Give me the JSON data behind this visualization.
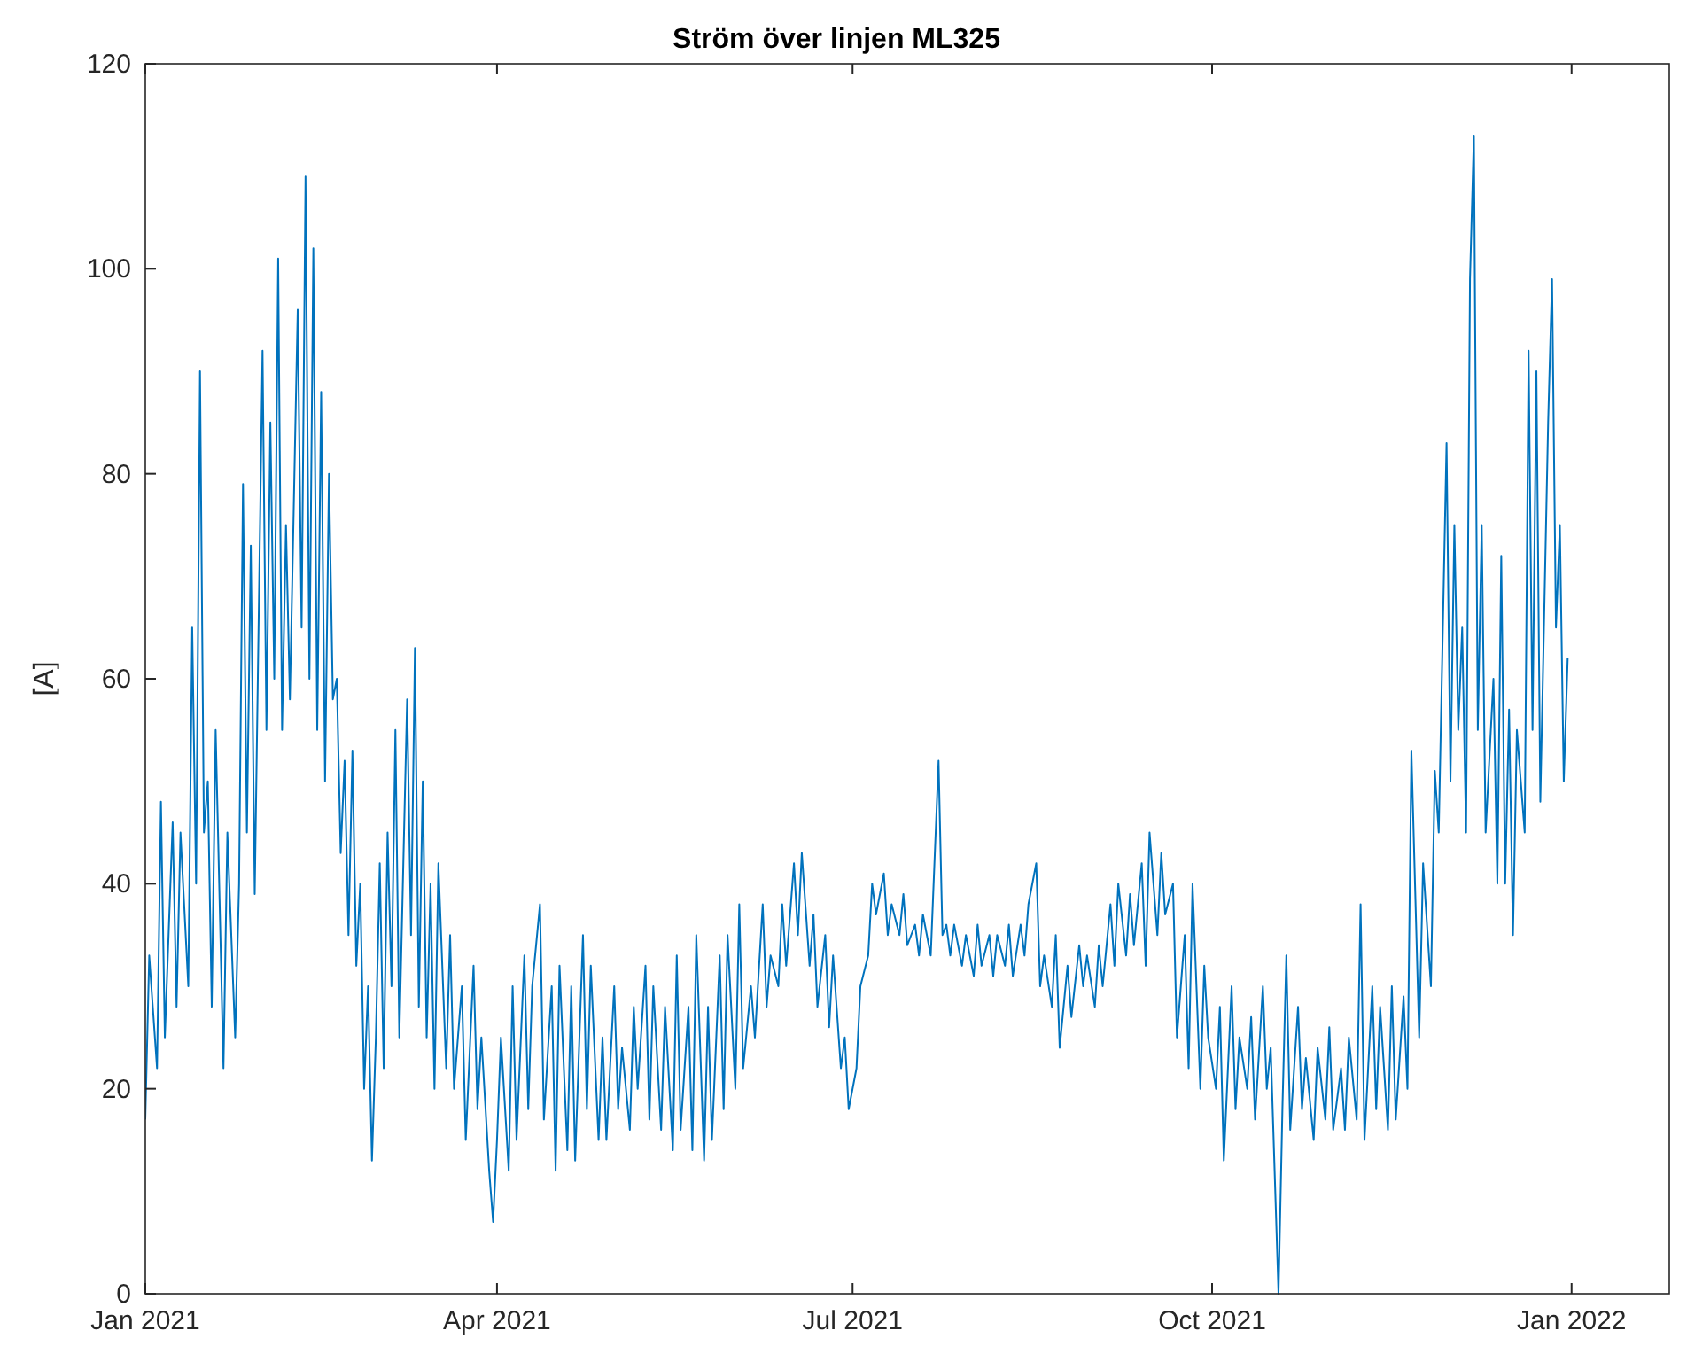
{
  "chart_data": {
    "type": "line",
    "title": "Ström över linjen ML325",
    "ylabel": "[A]",
    "xlim": [
      "2021-01-01",
      "2022-01-26"
    ],
    "xticks": [
      {
        "value": "2021-01-01",
        "label": "Jan 2021"
      },
      {
        "value": "2021-04-01",
        "label": "Apr 2021"
      },
      {
        "value": "2021-07-01",
        "label": "Jul 2021"
      },
      {
        "value": "2021-10-01",
        "label": "Oct 2021"
      },
      {
        "value": "2022-01-01",
        "label": "Jan 2022"
      }
    ],
    "ylim": [
      0,
      120
    ],
    "yticks": [
      0,
      20,
      40,
      60,
      80,
      100,
      120
    ],
    "grid": false,
    "marker": "none",
    "line_style": "solid",
    "series": [
      {
        "color": "#0072bd",
        "x": [
          "2021-01-01",
          "2021-01-02",
          "2021-01-04",
          "2021-01-05",
          "2021-01-06",
          "2021-01-08",
          "2021-01-09",
          "2021-01-10",
          "2021-01-12",
          "2021-01-13",
          "2021-01-14",
          "2021-01-15",
          "2021-01-16",
          "2021-01-17",
          "2021-01-18",
          "2021-01-19",
          "2021-01-21",
          "2021-01-22",
          "2021-01-24",
          "2021-01-25",
          "2021-01-26",
          "2021-01-27",
          "2021-01-28",
          "2021-01-29",
          "2021-01-31",
          "2021-02-01",
          "2021-02-02",
          "2021-02-03",
          "2021-02-04",
          "2021-02-05",
          "2021-02-06",
          "2021-02-07",
          "2021-02-09",
          "2021-02-10",
          "2021-02-11",
          "2021-02-12",
          "2021-02-13",
          "2021-02-14",
          "2021-02-15",
          "2021-02-16",
          "2021-02-17",
          "2021-02-18",
          "2021-02-19",
          "2021-02-20",
          "2021-02-21",
          "2021-02-22",
          "2021-02-23",
          "2021-02-24",
          "2021-02-25",
          "2021-02-26",
          "2021-02-27",
          "2021-02-28",
          "2021-03-01",
          "2021-03-02",
          "2021-03-03",
          "2021-03-04",
          "2021-03-05",
          "2021-03-06",
          "2021-03-07",
          "2021-03-09",
          "2021-03-10",
          "2021-03-11",
          "2021-03-12",
          "2021-03-13",
          "2021-03-14",
          "2021-03-15",
          "2021-03-16",
          "2021-03-17",
          "2021-03-19",
          "2021-03-20",
          "2021-03-21",
          "2021-03-23",
          "2021-03-24",
          "2021-03-26",
          "2021-03-27",
          "2021-03-28",
          "2021-03-30",
          "2021-03-31",
          "2021-04-01",
          "2021-04-02",
          "2021-04-04",
          "2021-04-05",
          "2021-04-06",
          "2021-04-08",
          "2021-04-09",
          "2021-04-10",
          "2021-04-12",
          "2021-04-13",
          "2021-04-15",
          "2021-04-16",
          "2021-04-17",
          "2021-04-19",
          "2021-04-20",
          "2021-04-21",
          "2021-04-23",
          "2021-04-24",
          "2021-04-25",
          "2021-04-27",
          "2021-04-28",
          "2021-04-29",
          "2021-05-01",
          "2021-05-02",
          "2021-05-03",
          "2021-05-05",
          "2021-05-06",
          "2021-05-07",
          "2021-05-09",
          "2021-05-10",
          "2021-05-11",
          "2021-05-13",
          "2021-05-14",
          "2021-05-16",
          "2021-05-17",
          "2021-05-18",
          "2021-05-20",
          "2021-05-21",
          "2021-05-22",
          "2021-05-24",
          "2021-05-25",
          "2021-05-26",
          "2021-05-28",
          "2021-05-29",
          "2021-05-30",
          "2021-06-01",
          "2021-06-02",
          "2021-06-03",
          "2021-06-05",
          "2021-06-06",
          "2021-06-08",
          "2021-06-09",
          "2021-06-10",
          "2021-06-12",
          "2021-06-13",
          "2021-06-14",
          "2021-06-16",
          "2021-06-17",
          "2021-06-18",
          "2021-06-20",
          "2021-06-21",
          "2021-06-22",
          "2021-06-24",
          "2021-06-25",
          "2021-06-26",
          "2021-06-28",
          "2021-06-29",
          "2021-06-30",
          "2021-07-02",
          "2021-07-03",
          "2021-07-05",
          "2021-07-06",
          "2021-07-07",
          "2021-07-09",
          "2021-07-10",
          "2021-07-11",
          "2021-07-13",
          "2021-07-14",
          "2021-07-15",
          "2021-07-17",
          "2021-07-18",
          "2021-07-19",
          "2021-07-21",
          "2021-07-23",
          "2021-07-24",
          "2021-07-25",
          "2021-07-26",
          "2021-07-27",
          "2021-07-29",
          "2021-07-30",
          "2021-08-01",
          "2021-08-02",
          "2021-08-03",
          "2021-08-05",
          "2021-08-06",
          "2021-08-07",
          "2021-08-09",
          "2021-08-10",
          "2021-08-11",
          "2021-08-13",
          "2021-08-14",
          "2021-08-15",
          "2021-08-17",
          "2021-08-18",
          "2021-08-19",
          "2021-08-21",
          "2021-08-22",
          "2021-08-23",
          "2021-08-25",
          "2021-08-26",
          "2021-08-28",
          "2021-08-29",
          "2021-08-30",
          "2021-09-01",
          "2021-09-02",
          "2021-09-03",
          "2021-09-05",
          "2021-09-06",
          "2021-09-07",
          "2021-09-09",
          "2021-09-10",
          "2021-09-11",
          "2021-09-13",
          "2021-09-14",
          "2021-09-15",
          "2021-09-17",
          "2021-09-18",
          "2021-09-19",
          "2021-09-21",
          "2021-09-22",
          "2021-09-24",
          "2021-09-25",
          "2021-09-26",
          "2021-09-28",
          "2021-09-29",
          "2021-09-30",
          "2021-10-02",
          "2021-10-03",
          "2021-10-04",
          "2021-10-06",
          "2021-10-07",
          "2021-10-08",
          "2021-10-10",
          "2021-10-11",
          "2021-10-12",
          "2021-10-14",
          "2021-10-15",
          "2021-10-16",
          "2021-10-18",
          "2021-10-19",
          "2021-10-20",
          "2021-10-21",
          "2021-10-23",
          "2021-10-24",
          "2021-10-25",
          "2021-10-27",
          "2021-10-28",
          "2021-10-30",
          "2021-10-31",
          "2021-11-01",
          "2021-11-03",
          "2021-11-04",
          "2021-11-05",
          "2021-11-07",
          "2021-11-08",
          "2021-11-09",
          "2021-11-11",
          "2021-11-12",
          "2021-11-13",
          "2021-11-15",
          "2021-11-16",
          "2021-11-17",
          "2021-11-19",
          "2021-11-20",
          "2021-11-21",
          "2021-11-23",
          "2021-11-24",
          "2021-11-26",
          "2021-11-27",
          "2021-11-28",
          "2021-11-30",
          "2021-12-01",
          "2021-12-02",
          "2021-12-03",
          "2021-12-04",
          "2021-12-05",
          "2021-12-06",
          "2021-12-07",
          "2021-12-08",
          "2021-12-09",
          "2021-12-10",
          "2021-12-12",
          "2021-12-13",
          "2021-12-14",
          "2021-12-15",
          "2021-12-16",
          "2021-12-17",
          "2021-12-18",
          "2021-12-20",
          "2021-12-21",
          "2021-12-22",
          "2021-12-23",
          "2021-12-24",
          "2021-12-26",
          "2021-12-27",
          "2021-12-28",
          "2021-12-29",
          "2021-12-30",
          "2021-12-31"
        ],
        "values": [
          17,
          33,
          22,
          48,
          25,
          46,
          28,
          45,
          30,
          65,
          40,
          90,
          45,
          50,
          28,
          55,
          22,
          45,
          25,
          40,
          79,
          45,
          73,
          39,
          92,
          55,
          85,
          60,
          101,
          55,
          75,
          58,
          96,
          65,
          109,
          60,
          102,
          55,
          88,
          50,
          80,
          58,
          60,
          43,
          52,
          35,
          53,
          32,
          40,
          20,
          30,
          13,
          25,
          42,
          22,
          45,
          30,
          55,
          25,
          58,
          35,
          63,
          28,
          50,
          25,
          40,
          20,
          42,
          22,
          35,
          20,
          30,
          15,
          32,
          18,
          25,
          12,
          7,
          15,
          25,
          12,
          30,
          15,
          33,
          18,
          30,
          38,
          17,
          30,
          12,
          32,
          14,
          30,
          13,
          35,
          18,
          32,
          15,
          25,
          15,
          30,
          18,
          24,
          16,
          28,
          20,
          32,
          17,
          30,
          16,
          28,
          14,
          33,
          16,
          28,
          14,
          35,
          13,
          28,
          15,
          33,
          18,
          35,
          20,
          38,
          22,
          30,
          25,
          38,
          28,
          33,
          30,
          38,
          32,
          42,
          35,
          43,
          32,
          37,
          28,
          35,
          26,
          33,
          22,
          25,
          18,
          22,
          30,
          33,
          40,
          37,
          41,
          35,
          38,
          35,
          39,
          34,
          36,
          33,
          37,
          33,
          52,
          35,
          36,
          33,
          36,
          32,
          35,
          31,
          36,
          32,
          35,
          31,
          35,
          32,
          36,
          31,
          36,
          33,
          38,
          42,
          30,
          33,
          28,
          35,
          24,
          32,
          27,
          34,
          30,
          33,
          28,
          34,
          30,
          38,
          32,
          40,
          33,
          39,
          34,
          42,
          32,
          45,
          35,
          43,
          37,
          40,
          25,
          35,
          22,
          40,
          20,
          32,
          25,
          20,
          28,
          13,
          30,
          18,
          25,
          20,
          27,
          17,
          30,
          20,
          24,
          0,
          18,
          33,
          16,
          28,
          18,
          23,
          15,
          24,
          17,
          26,
          16,
          22,
          16,
          25,
          17,
          38,
          15,
          30,
          18,
          28,
          16,
          30,
          17,
          29,
          20,
          53,
          25,
          42,
          30,
          51,
          45,
          83,
          50,
          75,
          55,
          65,
          45,
          99,
          113,
          55,
          75,
          45,
          60,
          40,
          72,
          40,
          57,
          35,
          55,
          45,
          92,
          55,
          90,
          48,
          85,
          99,
          65,
          75,
          50,
          62
        ]
      }
    ]
  }
}
